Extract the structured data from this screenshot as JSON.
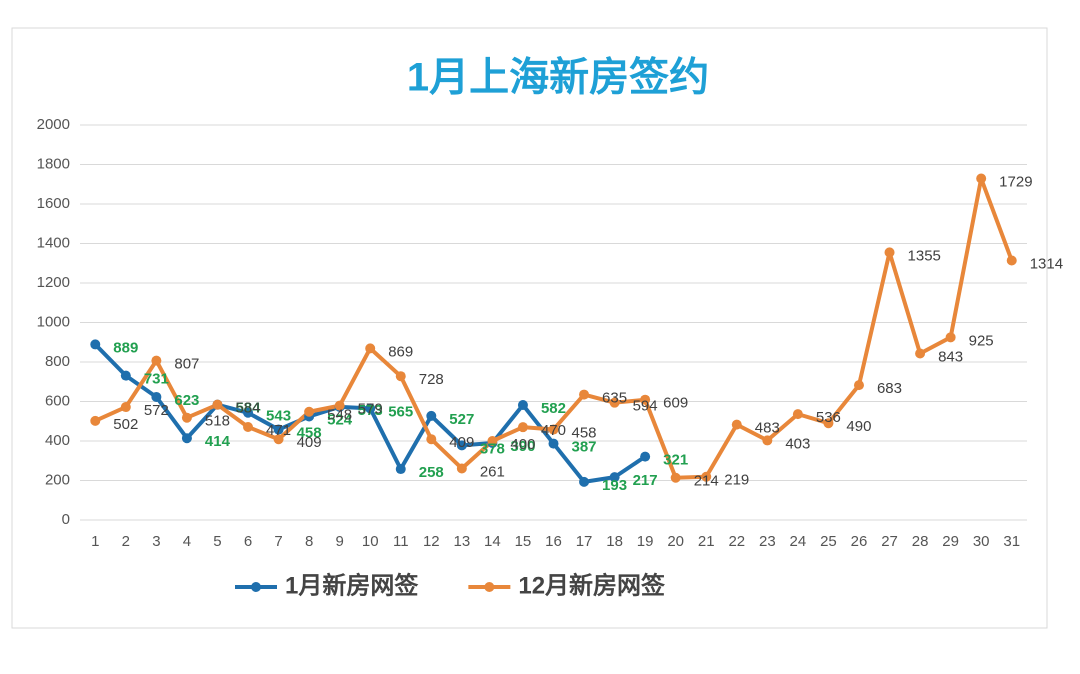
{
  "chart_data": {
    "type": "line",
    "title": "1月上海新房签约",
    "categories": [
      "1",
      "2",
      "3",
      "4",
      "5",
      "6",
      "7",
      "8",
      "9",
      "10",
      "11",
      "12",
      "13",
      "14",
      "15",
      "16",
      "17",
      "18",
      "19",
      "20",
      "21",
      "22",
      "23",
      "24",
      "25",
      "26",
      "27",
      "28",
      "29",
      "30",
      "31"
    ],
    "series": [
      {
        "name": "1月新房网签",
        "color": "#1f6fad",
        "label_color": "#22a050",
        "values": [
          889,
          731,
          623,
          414,
          584,
          543,
          458,
          524,
          573,
          565,
          258,
          527,
          378,
          390,
          582,
          387,
          193,
          217,
          321,
          null,
          null,
          null,
          null,
          null,
          null,
          null,
          null,
          null,
          null,
          null,
          null
        ]
      },
      {
        "name": "12月新房网签",
        "color": "#e8873a",
        "label_color": "#404040",
        "values": [
          502,
          572,
          807,
          518,
          584,
          471,
          409,
          548,
          579,
          869,
          728,
          409,
          261,
          400,
          470,
          458,
          635,
          594,
          609,
          214,
          219,
          483,
          403,
          536,
          490,
          683,
          1355,
          843,
          925,
          1729,
          1314
        ]
      }
    ],
    "ylim": [
      0,
      2000
    ],
    "yticks": [
      0,
      200,
      400,
      600,
      800,
      1000,
      1200,
      1400,
      1600,
      1800,
      2000
    ],
    "grid": true,
    "legend": "bottom"
  }
}
